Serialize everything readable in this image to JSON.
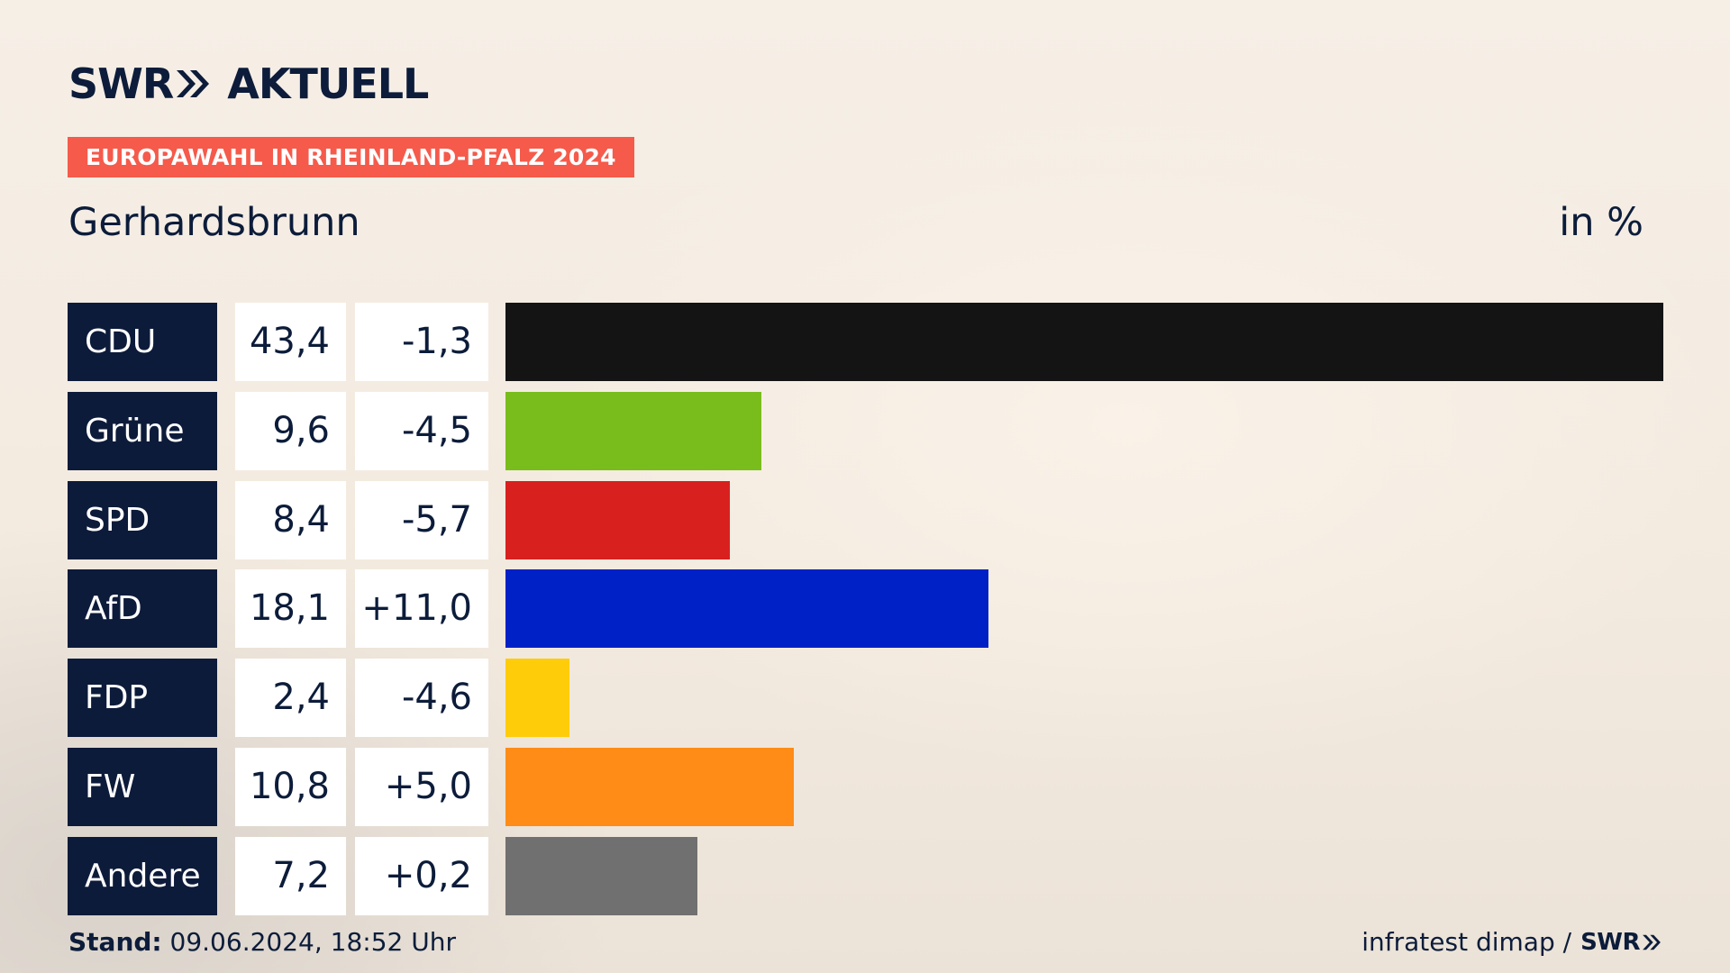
{
  "logo": {
    "brand": "SWR",
    "name": "AKTUELL"
  },
  "badge": "EUROPAWAHL IN RHEINLAND-PFALZ 2024",
  "region": "Gerhardsbrunn",
  "unit": "in %",
  "chart_data": {
    "type": "bar",
    "orientation": "horizontal",
    "xlim": [
      0,
      43.4
    ],
    "grid": false,
    "rows": [
      {
        "party": "CDU",
        "share": 43.4,
        "share_label": "43,4",
        "diff_label": "-1,3",
        "color": "#141414"
      },
      {
        "party": "Grüne",
        "share": 9.6,
        "share_label": "9,6",
        "diff_label": "-4,5",
        "color": "#79bd1c"
      },
      {
        "party": "SPD",
        "share": 8.4,
        "share_label": "8,4",
        "diff_label": "-5,7",
        "color": "#d8201f"
      },
      {
        "party": "AfD",
        "share": 18.1,
        "share_label": "18,1",
        "diff_label": "+11,0",
        "color": "#0021c6"
      },
      {
        "party": "FDP",
        "share": 2.4,
        "share_label": "2,4",
        "diff_label": "-4,6",
        "color": "#ffcc0a"
      },
      {
        "party": "FW",
        "share": 10.8,
        "share_label": "10,8",
        "diff_label": "+5,0",
        "color": "#ff8c17"
      },
      {
        "party": "Andere",
        "share": 7.2,
        "share_label": "7,2",
        "diff_label": "+0,2",
        "color": "#707070"
      }
    ]
  },
  "footer": {
    "stand_label": "Stand:",
    "stand_value": "09.06.2024, 18:52 Uhr",
    "source": "infratest dimap /",
    "source_brand": "SWR"
  }
}
